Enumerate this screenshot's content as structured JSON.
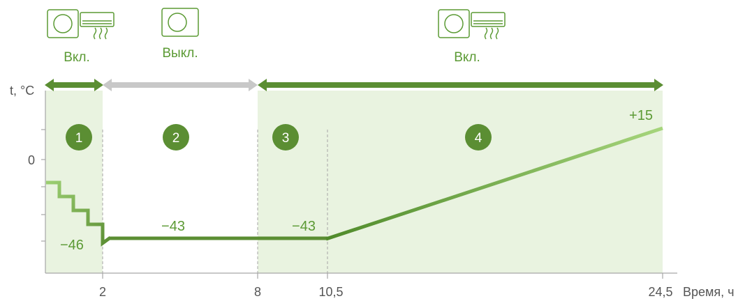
{
  "status_labels": {
    "on_1": "Вкл.",
    "off_2": "Выкл.",
    "on_2": "Вкл."
  },
  "axis": {
    "ylabel": "t, °C",
    "xlabel": "Время, ч",
    "y_zero_label": "0",
    "x_ticks": [
      "2",
      "8",
      "10,5",
      "24,5"
    ]
  },
  "zones": [
    "1",
    "2",
    "3",
    "4"
  ],
  "annotations": {
    "minus_46": "−46",
    "minus_43_a": "−43",
    "minus_43_b": "−43",
    "plus_15": "+15"
  },
  "icons": {
    "unit_on_1": "outdoor-and-indoor-unit-icon",
    "unit_off": "outdoor-unit-icon",
    "unit_on_2": "outdoor-and-indoor-unit-icon"
  },
  "colors": {
    "zone_fill": "#e9f3e0",
    "dark_green": "#5b8e33",
    "light_green": "#8cc862",
    "gray_arrow": "#c8c8c8",
    "badge": "#5b8e33",
    "axis": "#a6a6a6",
    "text_green": "#5b9a34",
    "text_gray": "#555555"
  }
}
